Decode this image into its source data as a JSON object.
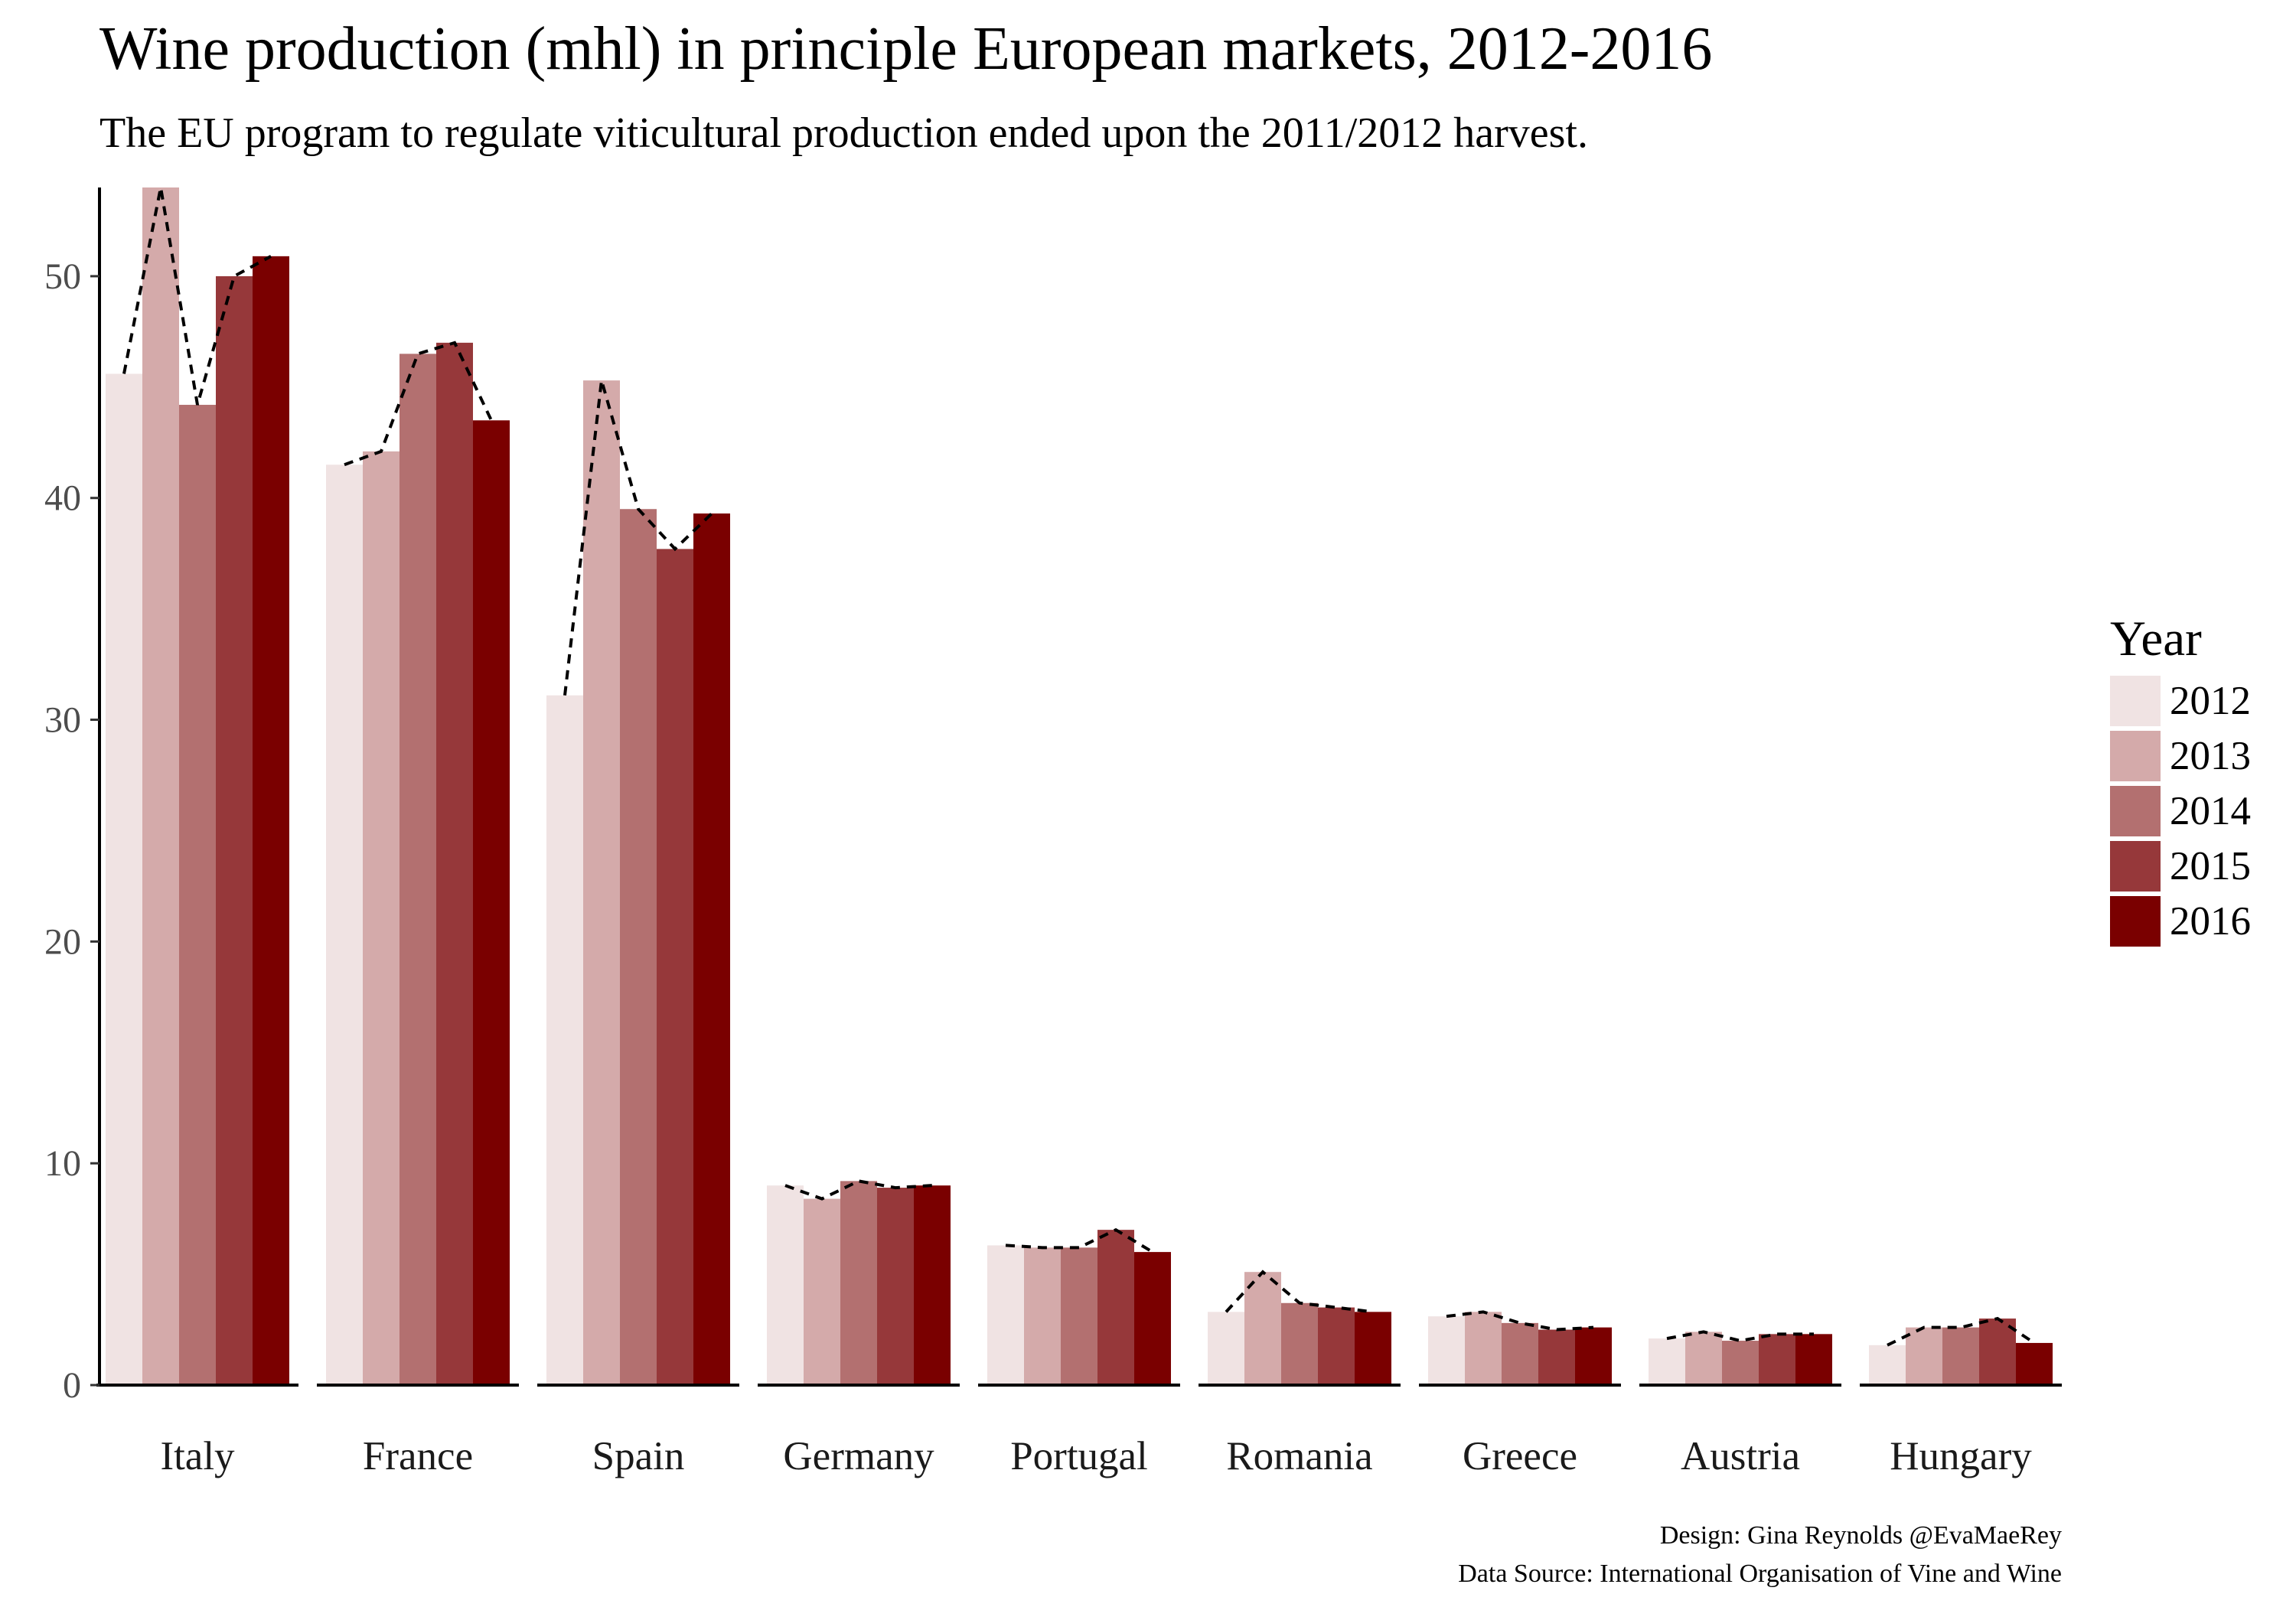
{
  "title": "Wine production (mhl) in principle European markets, 2012-2016",
  "subtitle": "The EU program to regulate viticultural production ended upon the 2011/2012 harvest.",
  "caption": {
    "design": "Design: Gina Reynolds @EvaMaeRey",
    "source": "Data Source: International Organisation of Vine and Wine"
  },
  "legend_title": "Year",
  "chart_data": {
    "type": "bar",
    "categories": [
      "Italy",
      "France",
      "Spain",
      "Germany",
      "Portugal",
      "Romania",
      "Greece",
      "Austria",
      "Hungary"
    ],
    "series": [
      {
        "name": "2012",
        "color": "#f0e3e3",
        "values": [
          45.6,
          41.5,
          31.1,
          9.0,
          6.3,
          3.3,
          3.1,
          2.1,
          1.8
        ]
      },
      {
        "name": "2013",
        "color": "#d4aaaa",
        "values": [
          54.0,
          42.1,
          45.3,
          8.4,
          6.2,
          5.1,
          3.3,
          2.4,
          2.6
        ]
      },
      {
        "name": "2014",
        "color": "#b37070",
        "values": [
          44.2,
          46.5,
          39.5,
          9.2,
          6.2,
          3.7,
          2.8,
          2.0,
          2.6
        ]
      },
      {
        "name": "2015",
        "color": "#96383a",
        "values": [
          50.0,
          47.0,
          37.7,
          8.9,
          7.0,
          3.5,
          2.5,
          2.3,
          3.0
        ]
      },
      {
        "name": "2016",
        "color": "#7a0000",
        "values": [
          50.9,
          43.5,
          39.3,
          9.0,
          6.0,
          3.3,
          2.6,
          2.3,
          1.9
        ]
      }
    ],
    "xlabel": "",
    "ylabel": "",
    "ylim": [
      0,
      54
    ],
    "yticks": [
      0,
      10,
      20,
      30,
      40,
      50
    ],
    "grid": false,
    "legend_position": "right",
    "overlay": "dashed line connecting bar tops within each country"
  }
}
